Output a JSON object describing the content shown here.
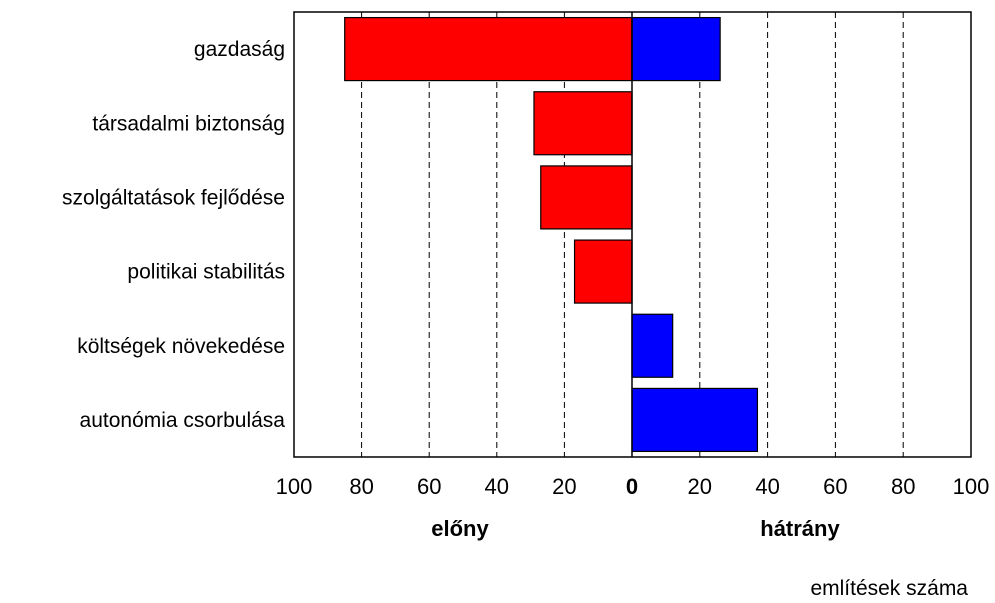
{
  "chart_data": {
    "type": "bar",
    "orientation": "horizontal",
    "categories": [
      "gazdaság",
      "társadalmi biztonság",
      "szolgáltatások fejlődése",
      "politikai stabilitás",
      "költségek növekedése",
      "autonómia csorbulása"
    ],
    "series": [
      {
        "values": [
          85,
          29,
          27,
          17,
          0,
          0
        ],
        "color": "#ff0000",
        "side": "left"
      },
      {
        "values": [
          26,
          0,
          0,
          0,
          12,
          37
        ],
        "color": "#0000ff",
        "side": "right"
      }
    ],
    "xlim": [
      -100,
      100
    ],
    "ticks": [
      {
        "value": -100,
        "label": "100"
      },
      {
        "value": -80,
        "label": "80"
      },
      {
        "value": -60,
        "label": "60"
      },
      {
        "value": -40,
        "label": "40"
      },
      {
        "value": -20,
        "label": "20"
      },
      {
        "value": 0,
        "label": "0"
      },
      {
        "value": 20,
        "label": "20"
      },
      {
        "value": 40,
        "label": "40"
      },
      {
        "value": 60,
        "label": "60"
      },
      {
        "value": 80,
        "label": "80"
      },
      {
        "value": 100,
        "label": "100"
      }
    ],
    "left_label": "előny",
    "right_label": "hátrány",
    "xlabel": "említések száma",
    "grid": "dashed vertical"
  }
}
